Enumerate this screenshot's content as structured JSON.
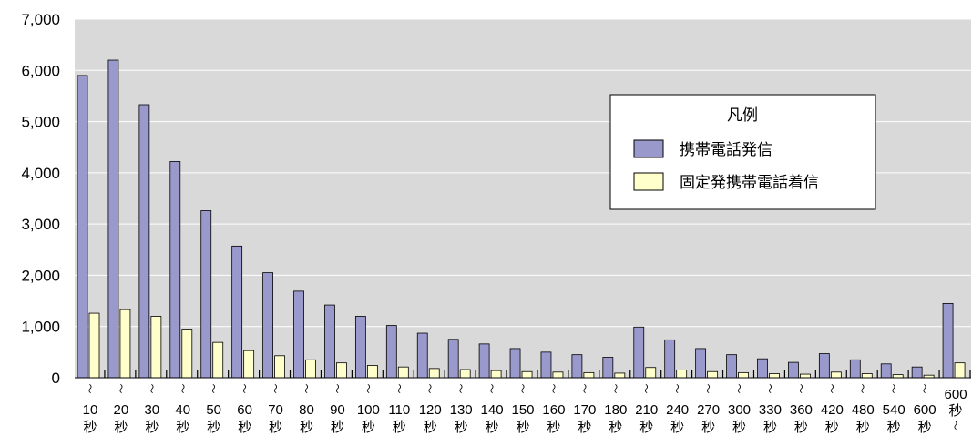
{
  "chart_data": {
    "type": "bar",
    "categories": [
      "10秒〜",
      "20秒〜",
      "30秒〜",
      "40秒〜",
      "50秒〜",
      "60秒〜",
      "70秒〜",
      "80秒〜",
      "90秒〜",
      "100秒〜",
      "110秒〜",
      "120秒〜",
      "130秒〜",
      "140秒〜",
      "150秒〜",
      "160秒〜",
      "170秒〜",
      "180秒〜",
      "210秒〜",
      "240秒〜",
      "270秒〜",
      "300秒〜",
      "330秒〜",
      "360秒〜",
      "420秒〜",
      "480秒〜",
      "540秒〜",
      "600秒",
      "600秒〜"
    ],
    "category_labels": {
      "upper": [
        "10",
        "20",
        "30",
        "40",
        "50",
        "60",
        "70",
        "80",
        "90",
        "100",
        "110",
        "120",
        "130",
        "140",
        "150",
        "160",
        "170",
        "180",
        "210",
        "240",
        "270",
        "300",
        "330",
        "360",
        "420",
        "480",
        "540",
        "600",
        "600"
      ],
      "unit": "秒",
      "range_mark": "〜"
    },
    "series": [
      {
        "name": "携帯電話発信",
        "color": "#9999cc",
        "values": [
          5900,
          6200,
          5330,
          4220,
          3260,
          2570,
          2050,
          1690,
          1420,
          1200,
          1020,
          870,
          750,
          660,
          570,
          500,
          450,
          400,
          990,
          740,
          570,
          450,
          370,
          300,
          470,
          350,
          270,
          210,
          1450
        ]
      },
      {
        "name": "固定発携帯電話着信",
        "color": "#ffffcc",
        "values": [
          1260,
          1330,
          1200,
          950,
          690,
          530,
          430,
          350,
          290,
          240,
          210,
          180,
          160,
          140,
          120,
          110,
          100,
          90,
          200,
          150,
          120,
          100,
          80,
          70,
          110,
          80,
          60,
          50,
          290
        ]
      }
    ],
    "ylim": [
      0,
      7000
    ],
    "yticks": [
      "0",
      "1,000",
      "2,000",
      "3,000",
      "4,000",
      "5,000",
      "6,000",
      "7,000"
    ],
    "ytick_values": [
      0,
      1000,
      2000,
      3000,
      4000,
      5000,
      6000,
      7000
    ],
    "legend": {
      "title": "凡例",
      "placement": "top-right"
    },
    "plot_background": "#d9d9d9",
    "gridlines": "horizontal",
    "title": "",
    "xlabel": "",
    "ylabel": ""
  }
}
